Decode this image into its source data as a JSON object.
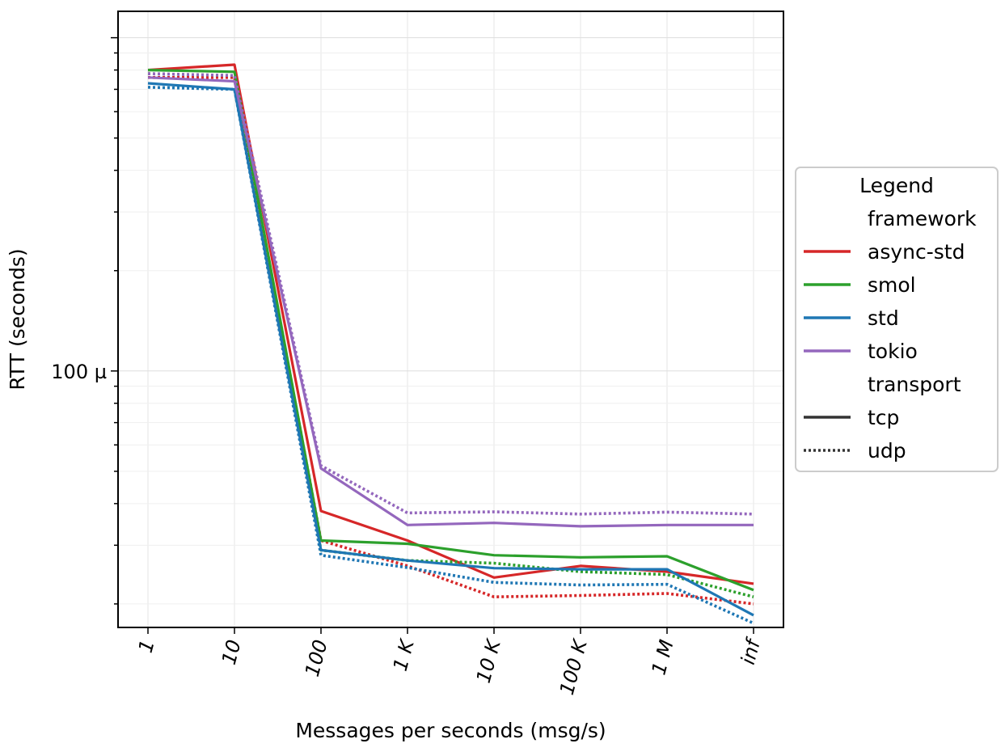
{
  "chart_data": {
    "type": "line",
    "title": "",
    "xlabel": "Messages per seconds (msg/s)",
    "ylabel": "RTT (seconds)",
    "yscale": "log",
    "ylim": [
      1.7e-05,
      0.0012
    ],
    "categories": [
      "1",
      "10",
      "100",
      "1 K",
      "10 K",
      "100 K",
      "1 M",
      "inf"
    ],
    "y_tick_labels": [
      {
        "value": 0.0001,
        "label": "100 µ"
      }
    ],
    "grid": true,
    "legend": {
      "title": "Legend",
      "position": "right",
      "group_titles": [
        "framework",
        "transport"
      ],
      "framework_entries": [
        "async-std",
        "smol",
        "std",
        "tokio"
      ],
      "transport_entries": [
        "tcp",
        "udp"
      ]
    },
    "colors": {
      "async-std": "#d62728",
      "smol": "#2ca02c",
      "std": "#1f77b4",
      "tokio": "#9467bd",
      "legend_line": "#333333"
    },
    "series": [
      {
        "name": "async-std tcp",
        "framework": "async-std",
        "transport": "tcp",
        "values": [
          0.0008,
          0.00083,
          3.8e-05,
          3.1e-05,
          2.4e-05,
          2.6e-05,
          2.5e-05,
          2.3e-05
        ]
      },
      {
        "name": "async-std udp",
        "framework": "async-std",
        "transport": "udp",
        "values": [
          0.00076,
          0.00076,
          3.1e-05,
          2.6e-05,
          2.1e-05,
          2.12e-05,
          2.15e-05,
          2e-05
        ]
      },
      {
        "name": "smol tcp",
        "framework": "smol",
        "transport": "tcp",
        "values": [
          0.0008,
          0.00079,
          3.1e-05,
          3.03e-05,
          2.8e-05,
          2.76e-05,
          2.78e-05,
          2.2e-05
        ]
      },
      {
        "name": "smol udp",
        "framework": "smol",
        "transport": "udp",
        "values": [
          0.00078,
          0.00077,
          2.9e-05,
          2.7e-05,
          2.65e-05,
          2.5e-05,
          2.45e-05,
          2.1e-05
        ]
      },
      {
        "name": "std tcp",
        "framework": "std",
        "transport": "tcp",
        "values": [
          0.00073,
          0.0007,
          2.9e-05,
          2.7e-05,
          2.56e-05,
          2.54e-05,
          2.54e-05,
          1.85e-05
        ]
      },
      {
        "name": "std udp",
        "framework": "std",
        "transport": "udp",
        "values": [
          0.00071,
          0.0007,
          2.8e-05,
          2.57e-05,
          2.32e-05,
          2.28e-05,
          2.29e-05,
          1.75e-05
        ]
      },
      {
        "name": "tokio tcp",
        "framework": "tokio",
        "transport": "tcp",
        "values": [
          0.00076,
          0.00074,
          5.1e-05,
          3.45e-05,
          3.5e-05,
          3.42e-05,
          3.45e-05,
          3.45e-05
        ]
      },
      {
        "name": "tokio udp",
        "framework": "tokio",
        "transport": "udp",
        "values": [
          0.00078,
          0.00077,
          5.2e-05,
          3.75e-05,
          3.78e-05,
          3.72e-05,
          3.77e-05,
          3.72e-05
        ]
      }
    ]
  }
}
